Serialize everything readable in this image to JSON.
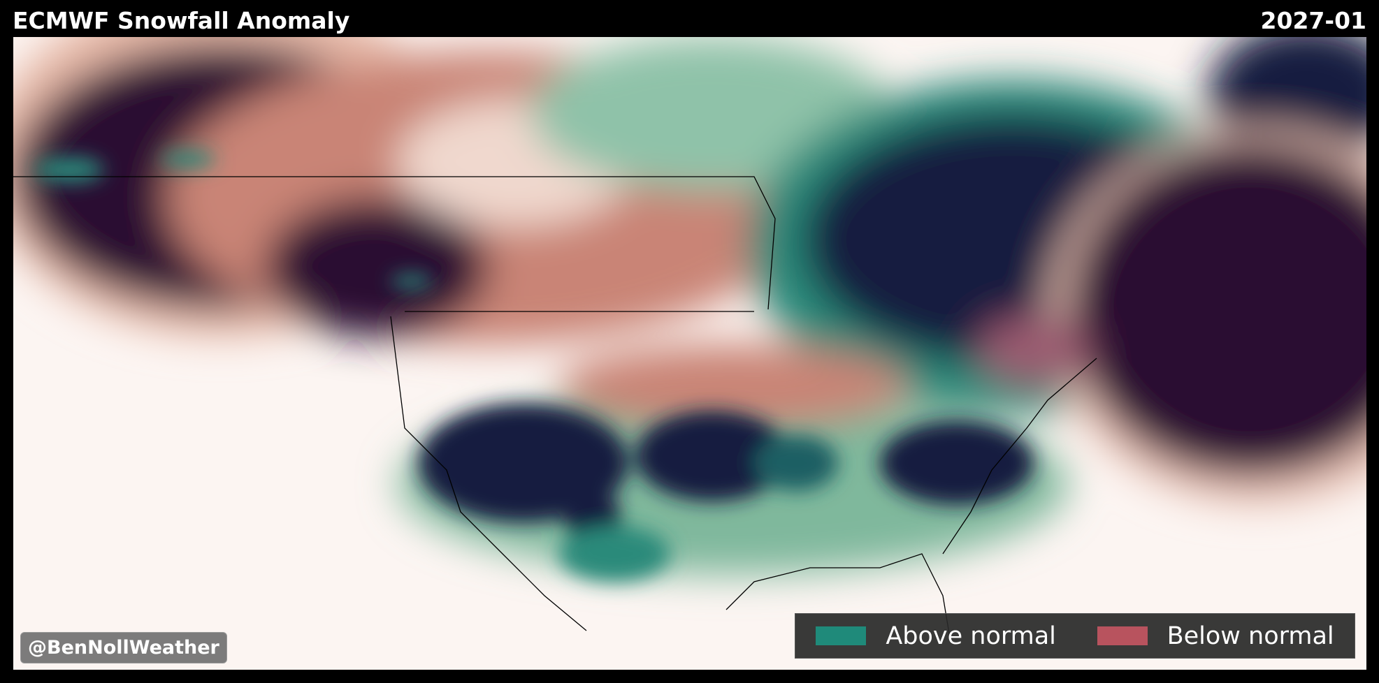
{
  "header": {
    "title": "ECMWF Snowfall Anomaly",
    "date": "2027-01"
  },
  "legend": {
    "items": [
      {
        "label": "Above normal",
        "color": "#1f8a7a"
      },
      {
        "label": "Below normal",
        "color": "#b8535e"
      }
    ]
  },
  "watermark": "@BenNollWeather"
}
